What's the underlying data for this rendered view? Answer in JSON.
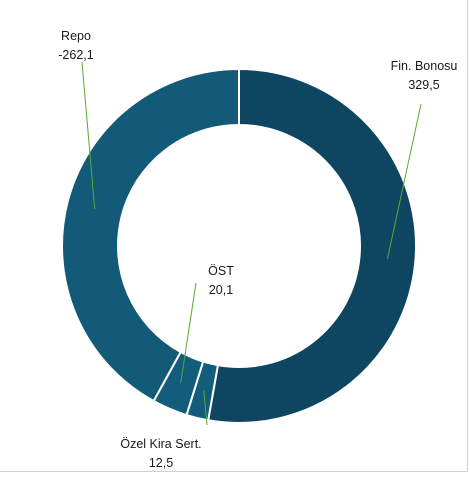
{
  "chart_data": {
    "type": "pie",
    "donut": true,
    "title": "",
    "slices": [
      {
        "label": "Fin. Bonosu",
        "value": 329.5,
        "value_label": "329,5",
        "color": "#0e4560"
      },
      {
        "label": "Özel Kira Sert.",
        "value": 12.5,
        "value_label": "12,5",
        "color": "#135d7c"
      },
      {
        "label": "ÖST",
        "value": 20.1,
        "value_label": "20,1",
        "color": "#135d7c"
      },
      {
        "label": "Repo",
        "value": 262.1,
        "value_label": "-262,1",
        "color": "#135a79"
      }
    ],
    "legend": "none",
    "label_style": "leader-lines",
    "leader_line_color": "#5aa832"
  }
}
